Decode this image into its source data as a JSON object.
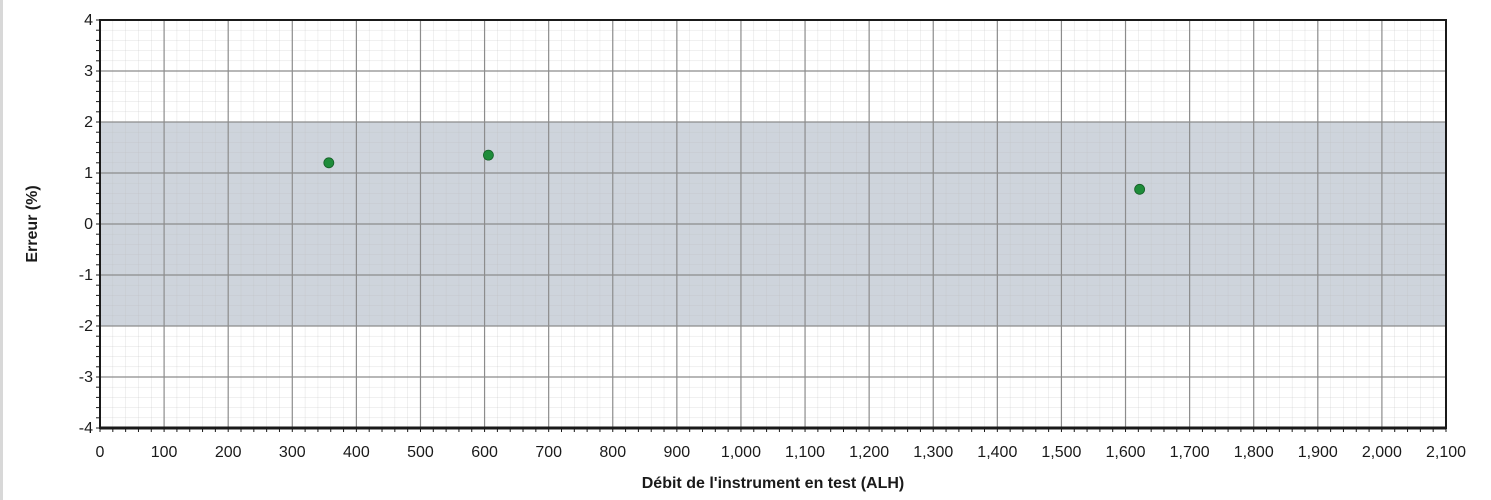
{
  "chart_data": {
    "type": "scatter",
    "xlabel": "Débit de l'instrument en test (ALH)",
    "ylabel": "Erreur (%)",
    "xlim": [
      0,
      2100
    ],
    "ylim": [
      -4,
      4
    ],
    "x_ticks": [
      "0",
      "100",
      "200",
      "300",
      "400",
      "500",
      "600",
      "700",
      "800",
      "900",
      "1,000",
      "1,100",
      "1,200",
      "1,300",
      "1,400",
      "1,500",
      "1,600",
      "1,700",
      "1,800",
      "1,900",
      "2,000",
      "2,100"
    ],
    "y_ticks": [
      "4",
      "3",
      "2",
      "1",
      "0",
      "-1",
      "-2",
      "-3",
      "-4"
    ],
    "tolerance_band": [
      -2,
      2
    ],
    "grid": true,
    "series": [
      {
        "points": [
          {
            "x": 357,
            "y": 1.2
          },
          {
            "x": 606,
            "y": 1.35
          },
          {
            "x": 1622,
            "y": 0.68
          }
        ]
      }
    ],
    "colors": {
      "point": "#1e8c3a",
      "band": "#c6cdd6",
      "grid": "#8c8c8c",
      "frame": "#1a1a1a"
    }
  }
}
